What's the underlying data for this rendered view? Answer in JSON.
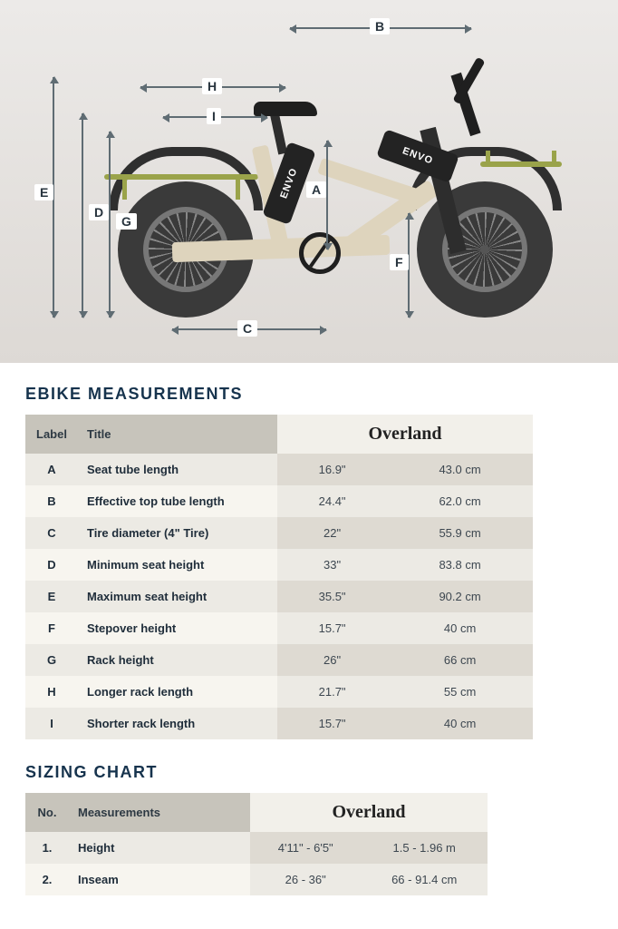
{
  "brand": "ENVO",
  "diagram": {
    "labels": {
      "A": "A",
      "B": "B",
      "C": "C",
      "D": "D",
      "E": "E",
      "F": "F",
      "G": "G",
      "H": "H",
      "I": "I"
    },
    "colors": {
      "background_top": "#eceae8",
      "background_bottom": "#ddd9d5",
      "frame": "#ded4bd",
      "rack": "#9aa34a",
      "tire": "#3a3a3a",
      "dim_line": "#5f6c73",
      "label_bg": "#ffffff",
      "label_text": "#28343e"
    }
  },
  "measurements": {
    "heading": "EBIKE MEASUREMENTS",
    "columns": {
      "label": "Label",
      "title": "Title",
      "model": "Overland"
    },
    "rows": [
      {
        "label": "A",
        "title": "Seat tube length",
        "imperial": "16.9\"",
        "metric": "43.0 cm"
      },
      {
        "label": "B",
        "title": "Effective top tube length",
        "imperial": "24.4\"",
        "metric": "62.0 cm"
      },
      {
        "label": "C",
        "title": "Tire diameter (4\" Tire)",
        "imperial": "22\"",
        "metric": "55.9 cm"
      },
      {
        "label": "D",
        "title": "Minimum seat height",
        "imperial": "33\"",
        "metric": "83.8 cm"
      },
      {
        "label": "E",
        "title": "Maximum seat height",
        "imperial": "35.5\"",
        "metric": "90.2 cm"
      },
      {
        "label": "F",
        "title": "Stepover height",
        "imperial": "15.7\"",
        "metric": "40 cm"
      },
      {
        "label": "G",
        "title": "Rack height",
        "imperial": "26\"",
        "metric": "66 cm"
      },
      {
        "label": "H",
        "title": "Longer rack length",
        "imperial": "21.7\"",
        "metric": "55 cm"
      },
      {
        "label": "I",
        "title": "Shorter rack length",
        "imperial": "15.7\"",
        "metric": "40 cm"
      }
    ]
  },
  "sizing": {
    "heading": "SIZING CHART",
    "columns": {
      "no": "No.",
      "measurements": "Measurements",
      "model": "Overland"
    },
    "rows": [
      {
        "no": "1.",
        "label": "Height",
        "imperial": "4'11\" - 6'5\"",
        "metric": "1.5 - 1.96 m"
      },
      {
        "no": "2.",
        "label": "Inseam",
        "imperial": "26 - 36\"",
        "metric": "66 - 91.4 cm"
      }
    ]
  },
  "table_style": {
    "header_bg": "#c7c4bb",
    "model_header_bg": "#f2f0ea",
    "row_odd_left": "#eceae4",
    "row_even_left": "#f7f5ef",
    "row_odd_right": "#dedad2",
    "row_even_right": "#eceae4",
    "heading_color": "#16334d",
    "text_color": "#1f2d3a",
    "font_size_body": 13,
    "font_size_heading": 18,
    "font_size_model": 20
  }
}
